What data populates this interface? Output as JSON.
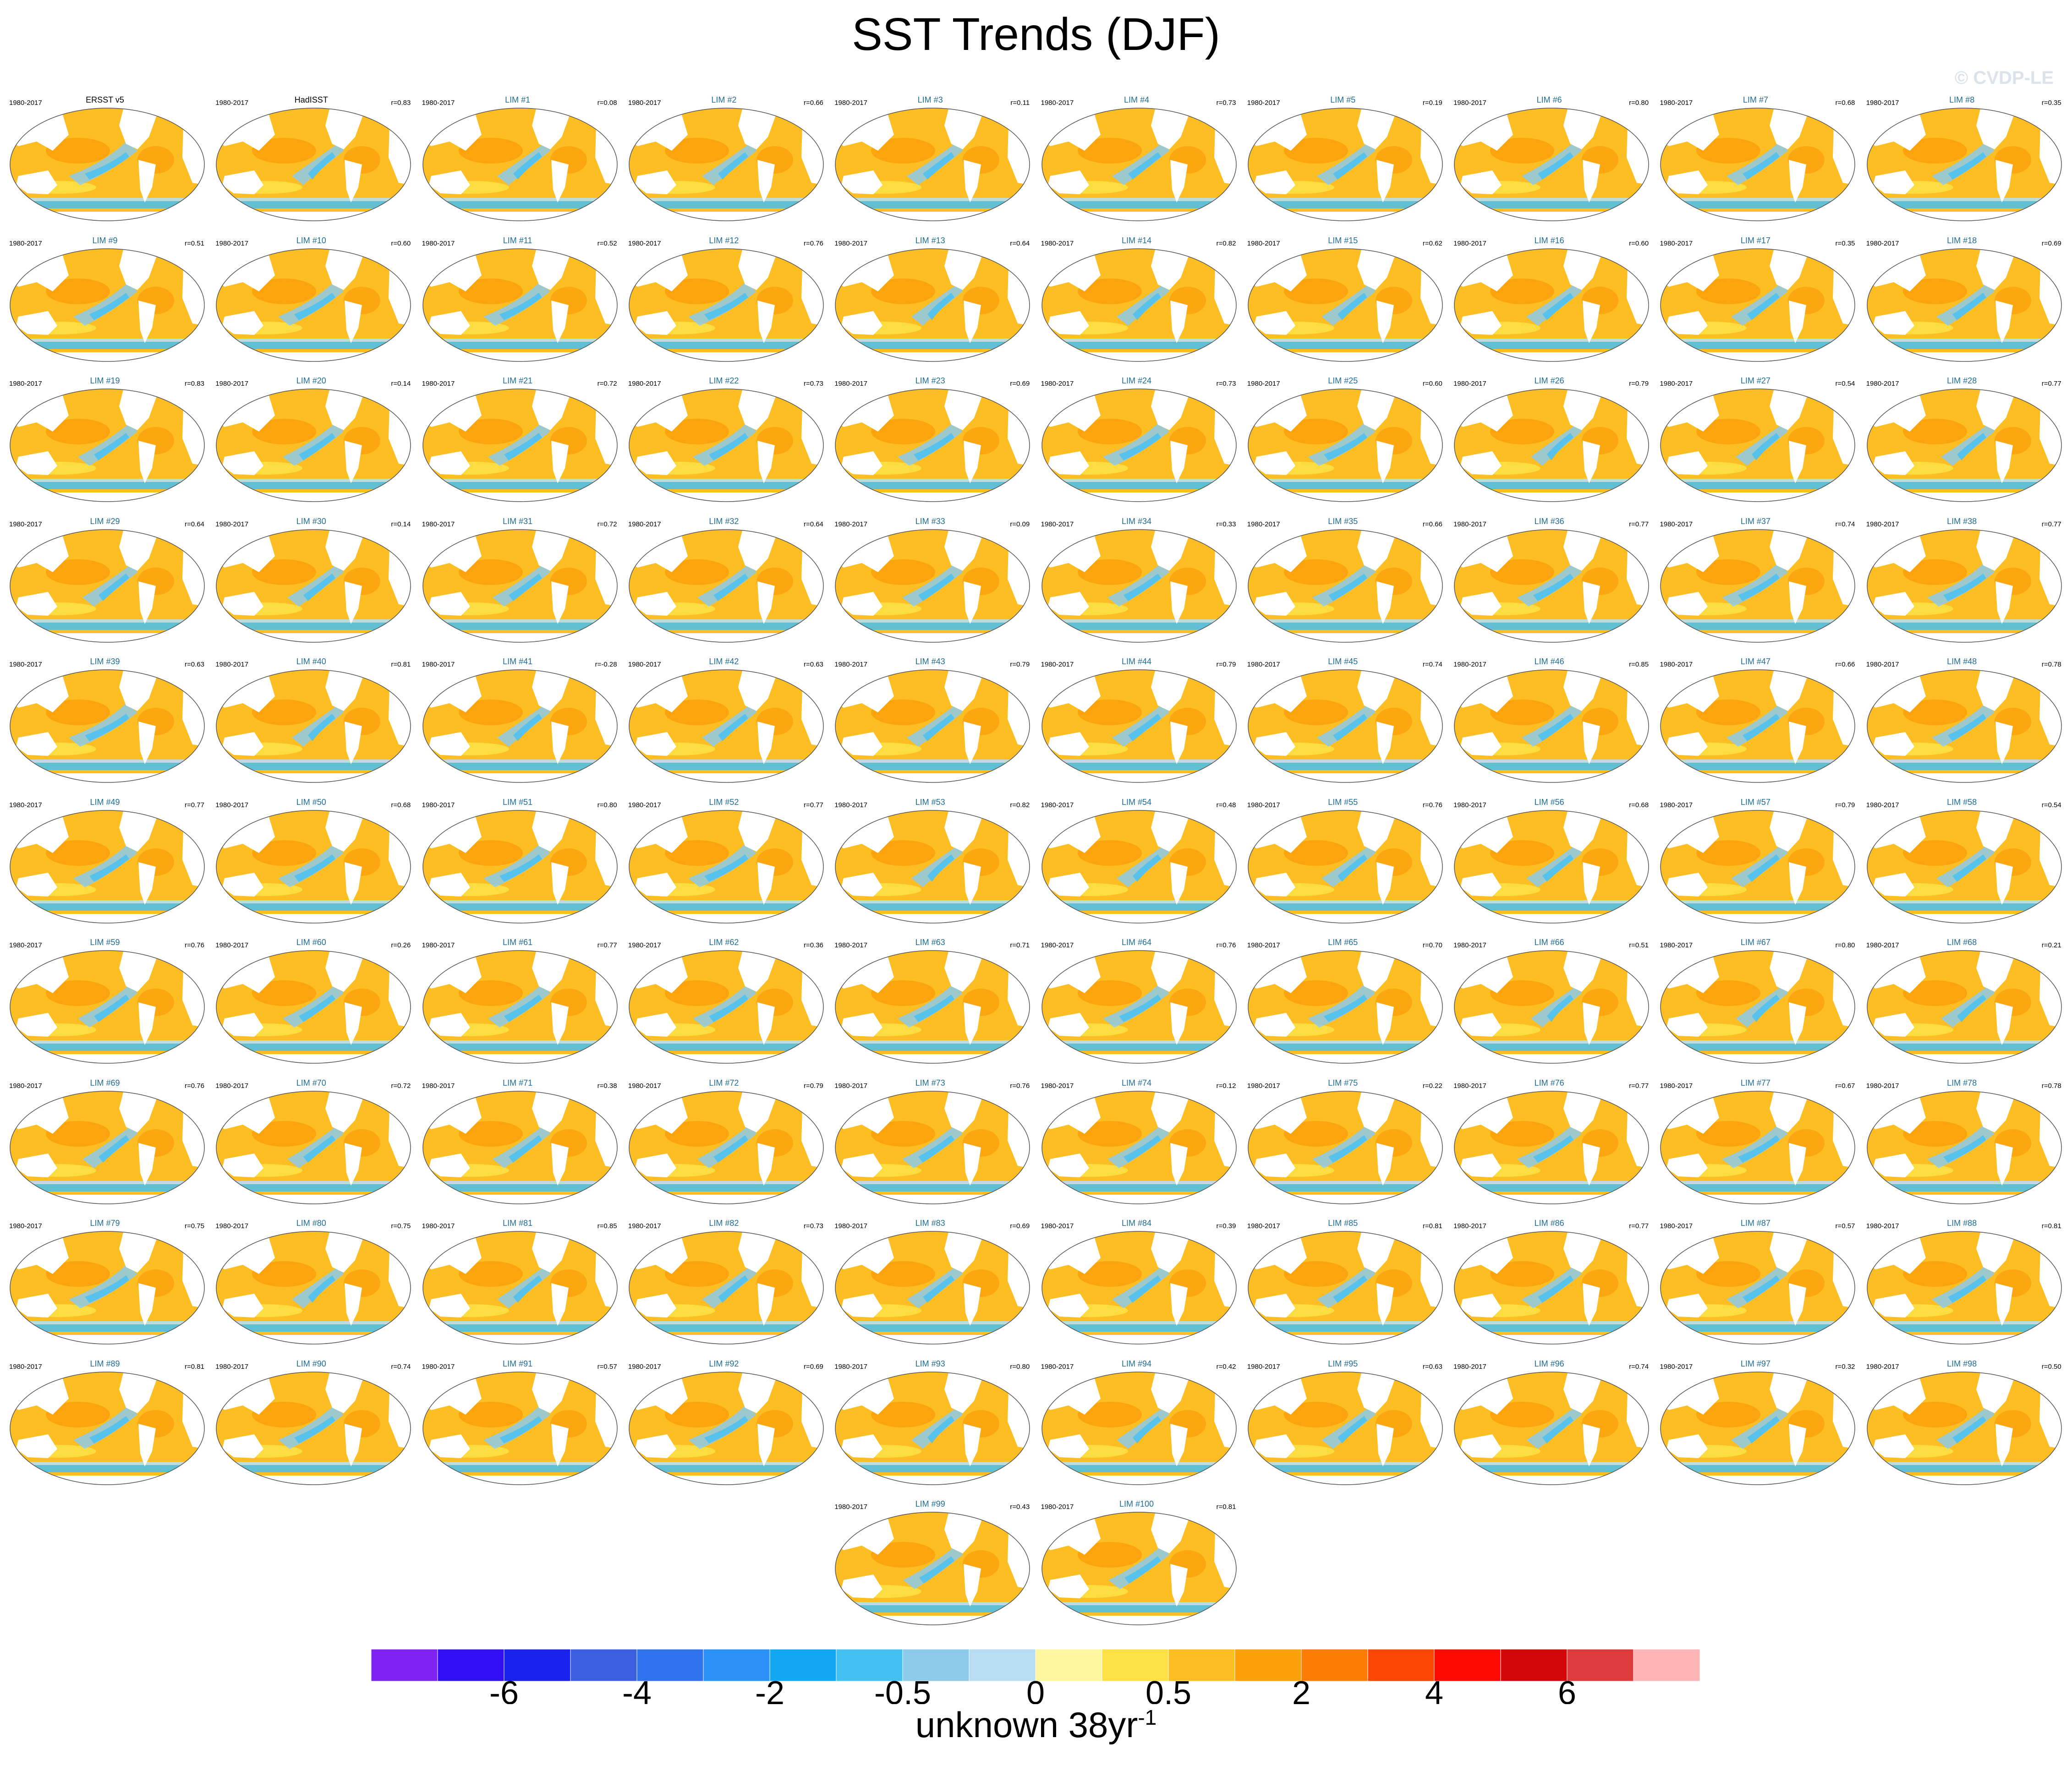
{
  "title": "SST Trends (DJF)",
  "watermark": "© CVDP-LE",
  "chart_data": {
    "type": "heatmap",
    "title": "SST Trends (DJF)",
    "colorbar": {
      "label_main": "unknown 38yr",
      "label_exp": "-1",
      "tick_labels": [
        "-6",
        "-4",
        "-2",
        "-0.5",
        "0",
        "0.5",
        "2",
        "4",
        "6"
      ],
      "colors": [
        "#7f24f0",
        "#3010f2",
        "#1a22ee",
        "#3c5fe0",
        "#2f74ee",
        "#2a92f8",
        "#12a8f4",
        "#45c0f2",
        "#8dcbea",
        "#b7def0",
        "#fdf7a0",
        "#fce045",
        "#fcbe22",
        "#fca10c",
        "#fc7c04",
        "#fc4804",
        "#fc0a02",
        "#d20808",
        "#dc3c3c",
        "#fcb4b4"
      ]
    },
    "panels": [
      {
        "period": "1980-2017",
        "title": "ERSST v5",
        "corr": ""
      },
      {
        "period": "1980-2017",
        "title": "HadISST",
        "corr": "r=0.83"
      },
      {
        "period": "1980-2017",
        "title": "LIM #1",
        "corr": "r=0.08"
      },
      {
        "period": "1980-2017",
        "title": "LIM #2",
        "corr": "r=0.66"
      },
      {
        "period": "1980-2017",
        "title": "LIM #3",
        "corr": "r=0.11"
      },
      {
        "period": "1980-2017",
        "title": "LIM #4",
        "corr": "r=0.73"
      },
      {
        "period": "1980-2017",
        "title": "LIM #5",
        "corr": "r=0.19"
      },
      {
        "period": "1980-2017",
        "title": "LIM #6",
        "corr": "r=0.80"
      },
      {
        "period": "1980-2017",
        "title": "LIM #7",
        "corr": "r=0.68"
      },
      {
        "period": "1980-2017",
        "title": "LIM #8",
        "corr": "r=0.35"
      },
      {
        "period": "1980-2017",
        "title": "LIM #9",
        "corr": "r=0.51"
      },
      {
        "period": "1980-2017",
        "title": "LIM #10",
        "corr": "r=0.60"
      },
      {
        "period": "1980-2017",
        "title": "LIM #11",
        "corr": "r=0.52"
      },
      {
        "period": "1980-2017",
        "title": "LIM #12",
        "corr": "r=0.76"
      },
      {
        "period": "1980-2017",
        "title": "LIM #13",
        "corr": "r=0.64"
      },
      {
        "period": "1980-2017",
        "title": "LIM #14",
        "corr": "r=0.82"
      },
      {
        "period": "1980-2017",
        "title": "LIM #15",
        "corr": "r=0.62"
      },
      {
        "period": "1980-2017",
        "title": "LIM #16",
        "corr": "r=0.60"
      },
      {
        "period": "1980-2017",
        "title": "LIM #17",
        "corr": "r=0.35"
      },
      {
        "period": "1980-2017",
        "title": "LIM #18",
        "corr": "r=0.69"
      },
      {
        "period": "1980-2017",
        "title": "LIM #19",
        "corr": "r=0.83"
      },
      {
        "period": "1980-2017",
        "title": "LIM #20",
        "corr": "r=0.14"
      },
      {
        "period": "1980-2017",
        "title": "LIM #21",
        "corr": "r=0.72"
      },
      {
        "period": "1980-2017",
        "title": "LIM #22",
        "corr": "r=0.73"
      },
      {
        "period": "1980-2017",
        "title": "LIM #23",
        "corr": "r=0.69"
      },
      {
        "period": "1980-2017",
        "title": "LIM #24",
        "corr": "r=0.73"
      },
      {
        "period": "1980-2017",
        "title": "LIM #25",
        "corr": "r=0.60"
      },
      {
        "period": "1980-2017",
        "title": "LIM #26",
        "corr": "r=0.79"
      },
      {
        "period": "1980-2017",
        "title": "LIM #27",
        "corr": "r=0.54"
      },
      {
        "period": "1980-2017",
        "title": "LIM #28",
        "corr": "r=0.77"
      },
      {
        "period": "1980-2017",
        "title": "LIM #29",
        "corr": "r=0.64"
      },
      {
        "period": "1980-2017",
        "title": "LIM #30",
        "corr": "r=0.14"
      },
      {
        "period": "1980-2017",
        "title": "LIM #31",
        "corr": "r=0.72"
      },
      {
        "period": "1980-2017",
        "title": "LIM #32",
        "corr": "r=0.64"
      },
      {
        "period": "1980-2017",
        "title": "LIM #33",
        "corr": "r=0.09"
      },
      {
        "period": "1980-2017",
        "title": "LIM #34",
        "corr": "r=0.33"
      },
      {
        "period": "1980-2017",
        "title": "LIM #35",
        "corr": "r=0.66"
      },
      {
        "period": "1980-2017",
        "title": "LIM #36",
        "corr": "r=0.77"
      },
      {
        "period": "1980-2017",
        "title": "LIM #37",
        "corr": "r=0.74"
      },
      {
        "period": "1980-2017",
        "title": "LIM #38",
        "corr": "r=0.77"
      },
      {
        "period": "1980-2017",
        "title": "LIM #39",
        "corr": "r=0.63"
      },
      {
        "period": "1980-2017",
        "title": "LIM #40",
        "corr": "r=0.81"
      },
      {
        "period": "1980-2017",
        "title": "LIM #41",
        "corr": "r=-0.28"
      },
      {
        "period": "1980-2017",
        "title": "LIM #42",
        "corr": "r=0.63"
      },
      {
        "period": "1980-2017",
        "title": "LIM #43",
        "corr": "r=0.79"
      },
      {
        "period": "1980-2017",
        "title": "LIM #44",
        "corr": "r=0.79"
      },
      {
        "period": "1980-2017",
        "title": "LIM #45",
        "corr": "r=0.74"
      },
      {
        "period": "1980-2017",
        "title": "LIM #46",
        "corr": "r=0.85"
      },
      {
        "period": "1980-2017",
        "title": "LIM #47",
        "corr": "r=0.66"
      },
      {
        "period": "1980-2017",
        "title": "LIM #48",
        "corr": "r=0.78"
      },
      {
        "period": "1980-2017",
        "title": "LIM #49",
        "corr": "r=0.77"
      },
      {
        "period": "1980-2017",
        "title": "LIM #50",
        "corr": "r=0.68"
      },
      {
        "period": "1980-2017",
        "title": "LIM #51",
        "corr": "r=0.80"
      },
      {
        "period": "1980-2017",
        "title": "LIM #52",
        "corr": "r=0.77"
      },
      {
        "period": "1980-2017",
        "title": "LIM #53",
        "corr": "r=0.82"
      },
      {
        "period": "1980-2017",
        "title": "LIM #54",
        "corr": "r=0.48"
      },
      {
        "period": "1980-2017",
        "title": "LIM #55",
        "corr": "r=0.76"
      },
      {
        "period": "1980-2017",
        "title": "LIM #56",
        "corr": "r=0.68"
      },
      {
        "period": "1980-2017",
        "title": "LIM #57",
        "corr": "r=0.79"
      },
      {
        "period": "1980-2017",
        "title": "LIM #58",
        "corr": "r=0.54"
      },
      {
        "period": "1980-2017",
        "title": "LIM #59",
        "corr": "r=0.76"
      },
      {
        "period": "1980-2017",
        "title": "LIM #60",
        "corr": "r=0.26"
      },
      {
        "period": "1980-2017",
        "title": "LIM #61",
        "corr": "r=0.77"
      },
      {
        "period": "1980-2017",
        "title": "LIM #62",
        "corr": "r=0.36"
      },
      {
        "period": "1980-2017",
        "title": "LIM #63",
        "corr": "r=0.71"
      },
      {
        "period": "1980-2017",
        "title": "LIM #64",
        "corr": "r=0.76"
      },
      {
        "period": "1980-2017",
        "title": "LIM #65",
        "corr": "r=0.70"
      },
      {
        "period": "1980-2017",
        "title": "LIM #66",
        "corr": "r=0.51"
      },
      {
        "period": "1980-2017",
        "title": "LIM #67",
        "corr": "r=0.80"
      },
      {
        "period": "1980-2017",
        "title": "LIM #68",
        "corr": "r=0.21"
      },
      {
        "period": "1980-2017",
        "title": "LIM #69",
        "corr": "r=0.76"
      },
      {
        "period": "1980-2017",
        "title": "LIM #70",
        "corr": "r=0.72"
      },
      {
        "period": "1980-2017",
        "title": "LIM #71",
        "corr": "r=0.38"
      },
      {
        "period": "1980-2017",
        "title": "LIM #72",
        "corr": "r=0.79"
      },
      {
        "period": "1980-2017",
        "title": "LIM #73",
        "corr": "r=0.76"
      },
      {
        "period": "1980-2017",
        "title": "LIM #74",
        "corr": "r=0.12"
      },
      {
        "period": "1980-2017",
        "title": "LIM #75",
        "corr": "r=0.22"
      },
      {
        "period": "1980-2017",
        "title": "LIM #76",
        "corr": "r=0.77"
      },
      {
        "period": "1980-2017",
        "title": "LIM #77",
        "corr": "r=0.67"
      },
      {
        "period": "1980-2017",
        "title": "LIM #78",
        "corr": "r=0.78"
      },
      {
        "period": "1980-2017",
        "title": "LIM #79",
        "corr": "r=0.75"
      },
      {
        "period": "1980-2017",
        "title": "LIM #80",
        "corr": "r=0.75"
      },
      {
        "period": "1980-2017",
        "title": "LIM #81",
        "corr": "r=0.85"
      },
      {
        "period": "1980-2017",
        "title": "LIM #82",
        "corr": "r=0.73"
      },
      {
        "period": "1980-2017",
        "title": "LIM #83",
        "corr": "r=0.69"
      },
      {
        "period": "1980-2017",
        "title": "LIM #84",
        "corr": "r=0.39"
      },
      {
        "period": "1980-2017",
        "title": "LIM #85",
        "corr": "r=0.81"
      },
      {
        "period": "1980-2017",
        "title": "LIM #86",
        "corr": "r=0.77"
      },
      {
        "period": "1980-2017",
        "title": "LIM #87",
        "corr": "r=0.57"
      },
      {
        "period": "1980-2017",
        "title": "LIM #88",
        "corr": "r=0.81"
      },
      {
        "period": "1980-2017",
        "title": "LIM #89",
        "corr": "r=0.81"
      },
      {
        "period": "1980-2017",
        "title": "LIM #90",
        "corr": "r=0.74"
      },
      {
        "period": "1980-2017",
        "title": "LIM #91",
        "corr": "r=0.57"
      },
      {
        "period": "1980-2017",
        "title": "LIM #92",
        "corr": "r=0.69"
      },
      {
        "period": "1980-2017",
        "title": "LIM #93",
        "corr": "r=0.80"
      },
      {
        "period": "1980-2017",
        "title": "LIM #94",
        "corr": "r=0.42"
      },
      {
        "period": "1980-2017",
        "title": "LIM #95",
        "corr": "r=0.63"
      },
      {
        "period": "1980-2017",
        "title": "LIM #96",
        "corr": "r=0.74"
      },
      {
        "period": "1980-2017",
        "title": "LIM #97",
        "corr": "r=0.32"
      },
      {
        "period": "1980-2017",
        "title": "LIM #98",
        "corr": "r=0.50"
      },
      {
        "period": "1980-2017",
        "title": "LIM #99",
        "corr": "r=0.43"
      },
      {
        "period": "1980-2017",
        "title": "LIM #100",
        "corr": "r=0.81"
      }
    ]
  }
}
